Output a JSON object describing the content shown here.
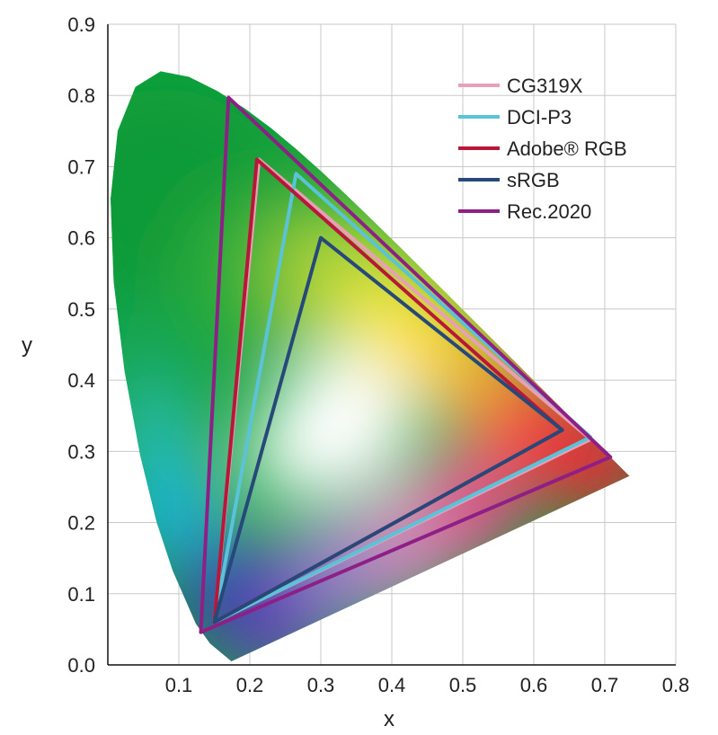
{
  "chart_data": {
    "type": "scatter",
    "title": "",
    "xlabel": "x",
    "ylabel": "y",
    "xlim": [
      0,
      0.8
    ],
    "ylim": [
      0,
      0.9
    ],
    "x_ticks": [
      "0.1",
      "0.2",
      "0.3",
      "0.4",
      "0.5",
      "0.6",
      "0.7",
      "0.8"
    ],
    "y_ticks": [
      "0.0",
      "0.1",
      "0.2",
      "0.3",
      "0.4",
      "0.5",
      "0.6",
      "0.7",
      "0.8",
      "0.9"
    ],
    "grid": true,
    "legend_position": "top-right",
    "spectral_locus": [
      [
        0.1741,
        0.005
      ],
      [
        0.144,
        0.03
      ],
      [
        0.1241,
        0.0578
      ],
      [
        0.0913,
        0.1327
      ],
      [
        0.0687,
        0.2007
      ],
      [
        0.0454,
        0.295
      ],
      [
        0.0235,
        0.4127
      ],
      [
        0.0082,
        0.5384
      ],
      [
        0.0039,
        0.6548
      ],
      [
        0.0139,
        0.7502
      ],
      [
        0.0389,
        0.812
      ],
      [
        0.0743,
        0.8338
      ],
      [
        0.1142,
        0.8262
      ],
      [
        0.1547,
        0.8059
      ],
      [
        0.1929,
        0.7816
      ],
      [
        0.2296,
        0.7543
      ],
      [
        0.2658,
        0.7243
      ],
      [
        0.3016,
        0.6923
      ],
      [
        0.3373,
        0.6589
      ],
      [
        0.3731,
        0.6245
      ],
      [
        0.4087,
        0.5896
      ],
      [
        0.4441,
        0.5547
      ],
      [
        0.4788,
        0.5202
      ],
      [
        0.5125,
        0.4866
      ],
      [
        0.5448,
        0.4544
      ],
      [
        0.5752,
        0.4242
      ],
      [
        0.6029,
        0.3965
      ],
      [
        0.627,
        0.3725
      ],
      [
        0.6482,
        0.3514
      ],
      [
        0.6658,
        0.334
      ],
      [
        0.6915,
        0.3083
      ],
      [
        0.7347,
        0.2653
      ]
    ],
    "series": [
      {
        "name": "CG319X",
        "color": "#e7a0b8",
        "points": [
          [
            0.68,
            0.317
          ],
          [
            0.213,
            0.71
          ],
          [
            0.15,
            0.06
          ]
        ]
      },
      {
        "name": "DCI-P3",
        "color": "#5bc3d8",
        "points": [
          [
            0.68,
            0.32
          ],
          [
            0.265,
            0.69
          ],
          [
            0.15,
            0.06
          ]
        ]
      },
      {
        "name": "Adobe® RGB",
        "color": "#b8173a",
        "points": [
          [
            0.64,
            0.33
          ],
          [
            0.21,
            0.71
          ],
          [
            0.15,
            0.06
          ]
        ]
      },
      {
        "name": "sRGB",
        "color": "#27497a",
        "points": [
          [
            0.64,
            0.33
          ],
          [
            0.3,
            0.6
          ],
          [
            0.15,
            0.06
          ]
        ]
      },
      {
        "name": "Rec.2020",
        "color": "#8e1f86",
        "points": [
          [
            0.708,
            0.292
          ],
          [
            0.17,
            0.797
          ],
          [
            0.131,
            0.046
          ]
        ]
      }
    ]
  }
}
